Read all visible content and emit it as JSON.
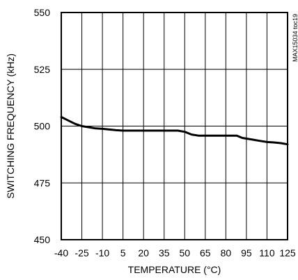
{
  "chart_data": {
    "type": "line",
    "title": "",
    "xlabel": "TEMPERATURE (°C)",
    "ylabel": "SWITCHING FREQUENCY (kHz)",
    "annotation": "MAX15034 toc19",
    "xlim": [
      -40,
      125
    ],
    "ylim": [
      450,
      550
    ],
    "xticks": [
      -40,
      -25,
      -10,
      5,
      20,
      35,
      50,
      65,
      80,
      95,
      110,
      125
    ],
    "yticks": [
      450,
      475,
      500,
      525,
      550
    ],
    "grid": true,
    "series": [
      {
        "x": [
          -40,
          -35,
          -30,
          -25,
          -20,
          -15,
          -10,
          -5,
          0,
          5,
          10,
          20,
          30,
          40,
          45,
          50,
          55,
          60,
          65,
          70,
          80,
          85,
          88,
          92,
          100,
          105,
          110,
          115,
          120,
          125
        ],
        "y": [
          504,
          502.5,
          501,
          500,
          499.5,
          499,
          498.8,
          498.5,
          498.2,
          498,
          498,
          498,
          498,
          498,
          498,
          497.5,
          496.3,
          495.8,
          495.8,
          495.8,
          495.8,
          495.8,
          495.8,
          494.8,
          494,
          493.5,
          493,
          492.8,
          492.5,
          492
        ]
      }
    ],
    "colors": {
      "line": "#000000",
      "grid": "#000000"
    }
  }
}
